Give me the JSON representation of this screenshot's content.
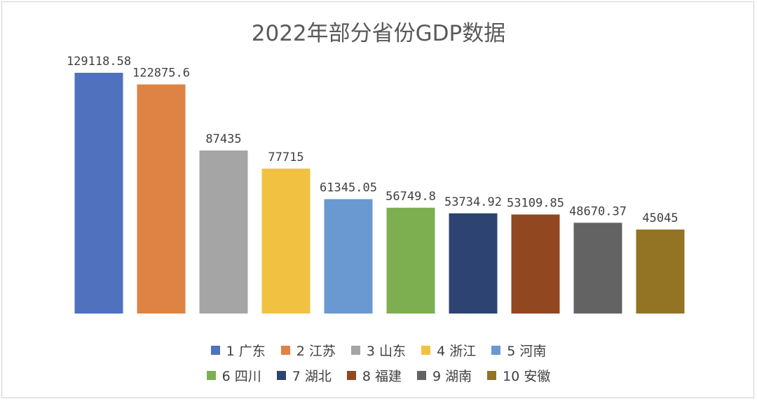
{
  "chart_data": {
    "type": "bar",
    "title": "2022年部分省份GDP数据",
    "categories": [
      "1 广东",
      "2 江苏",
      "3 山东",
      "4 浙江",
      "5 河南",
      "6 四川",
      "7 湖北",
      "8 福建",
      "9 湖南",
      "10 安徽"
    ],
    "values": [
      129118.58,
      122875.6,
      87435,
      77715,
      61345.05,
      56749.8,
      53734.92,
      53109.85,
      48670.37,
      45045
    ],
    "value_labels": [
      "129118.58",
      "122875.6",
      "87435",
      "77715",
      "61345.05",
      "56749.8",
      "53734.92",
      "53109.85",
      "48670.37",
      "45045"
    ],
    "colors": [
      "#4f71be",
      "#de8344",
      "#a5a5a5",
      "#f1c242",
      "#6a98d0",
      "#7daf51",
      "#2d4472",
      "#91471f",
      "#636363",
      "#937424"
    ],
    "ylim": [
      0,
      140000
    ],
    "grid": false,
    "legend_position": "bottom"
  }
}
